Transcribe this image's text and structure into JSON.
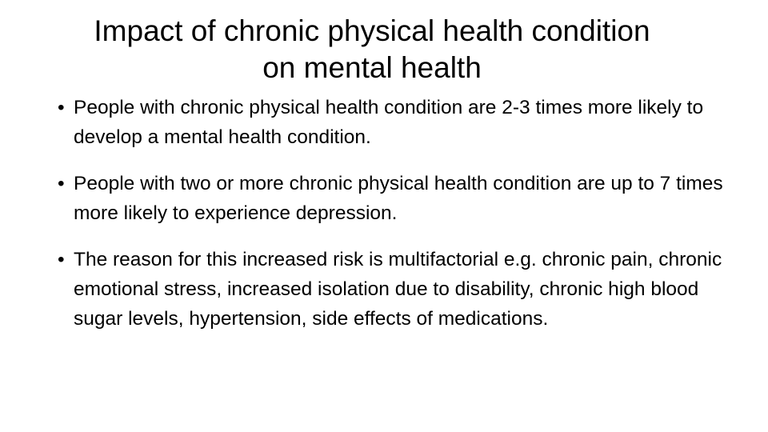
{
  "slide": {
    "title_line1": "Impact of chronic physical health condition",
    "title_line2": "on mental health",
    "bullets": [
      "People with chronic physical health condition are 2-3 times more likely to develop a mental health condition.",
      "People with two or more chronic physical health condition are up to 7 times more likely to experience depression.",
      "The reason for this increased risk is multifactorial e.g. chronic pain, chronic emotional stress, increased isolation due to disability, chronic high blood sugar levels, hypertension, side effects of medications."
    ]
  }
}
